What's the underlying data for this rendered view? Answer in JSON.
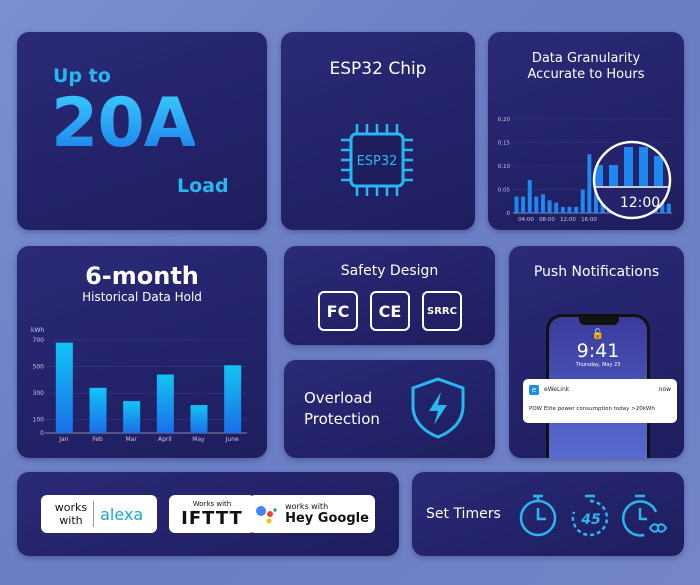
{
  "load": {
    "prefix": "Up to",
    "value": "20A",
    "suffix": "Load"
  },
  "chip": {
    "title": "ESP32 Chip",
    "label": "ESP32"
  },
  "granularity": {
    "title_line1": "Data Granularity",
    "title_line2": "Accurate to Hours",
    "magnifier_label": "12:00"
  },
  "history": {
    "title": "6-month",
    "subtitle": "Historical Data Hold"
  },
  "safety": {
    "title": "Safety Design",
    "certs": [
      "FC",
      "CE",
      "SRRC"
    ]
  },
  "overload": {
    "line1": "Overload",
    "line2": "Protection",
    "icon": "shield-bolt-icon"
  },
  "push": {
    "title": "Push Notifications",
    "time": "9:41",
    "date": "Thursday, May 23",
    "app": "eWeLink",
    "when": "now",
    "message": "POW Elite power consumption today >20kWh"
  },
  "integrations": {
    "alexa_works": "works",
    "alexa_with": "with",
    "alexa": "alexa",
    "ifttt_works": "Works with",
    "ifttt": "IFTTT",
    "google_works": "works with",
    "google": "Hey Google"
  },
  "timers": {
    "title": "Set Timers",
    "countdown": "45",
    "icons": [
      "clock-icon",
      "countdown-45-icon",
      "infinite-loop-clock-icon"
    ]
  },
  "colors": {
    "card": "#22216a",
    "accent": "#27b8f0",
    "bar": "#1e88f0"
  },
  "chart_data": [
    {
      "type": "bar",
      "title": "",
      "ylabel": "",
      "ylim": [
        0,
        0.2
      ],
      "yticks": [
        "0",
        "0.05",
        "0.10",
        "0.15",
        "0.20"
      ],
      "xticks": [
        "04:00",
        "08:00",
        "12:00",
        "16:00"
      ],
      "values": [
        0.035,
        0.035,
        0.07,
        0.035,
        0.04,
        0.027,
        0.022,
        0.013,
        0.013,
        0.013,
        0.05,
        0.125,
        0.075,
        0.055,
        0.07,
        0.07,
        0.13,
        0.13,
        0.1,
        0.05,
        0.04,
        0.03,
        0.03,
        0.02
      ],
      "grid": true
    },
    {
      "type": "bar",
      "ylabel": "kWh",
      "ylim": [
        0,
        700
      ],
      "yticks": [
        "0",
        "100",
        "300",
        "500",
        "700"
      ],
      "categories": [
        "Jan",
        "Feb",
        "Mar",
        "April",
        "May",
        "June"
      ],
      "values": [
        680,
        340,
        240,
        440,
        210,
        510
      ],
      "grid": true
    }
  ]
}
